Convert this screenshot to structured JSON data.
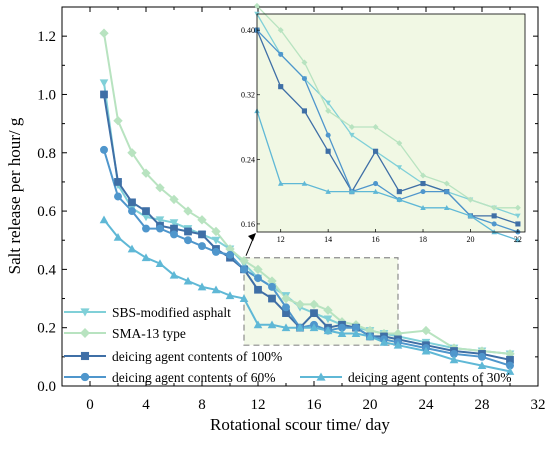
{
  "chart_data": {
    "type": "line",
    "xlabel": "Rotational scour time/ day",
    "ylabel": "Salt release per hour/ g",
    "xlim": [
      -2,
      32
    ],
    "ylim": [
      0,
      1.3
    ],
    "x_ticks": [
      "0",
      "4",
      "8",
      "12",
      "16",
      "20",
      "24",
      "28",
      "32"
    ],
    "y_ticks": [
      "0.0",
      "0.2",
      "0.4",
      "0.6",
      "0.8",
      "1.0",
      "1.2"
    ],
    "grid": false,
    "legend_placement": "bottom-left",
    "series": [
      {
        "name": "SBS-modified asphalt",
        "color": "#80d0d8",
        "marker": "triangle-down",
        "x": [
          1,
          2,
          3,
          4,
          5,
          6,
          7,
          8,
          9,
          10,
          11,
          12,
          13,
          14,
          15,
          16,
          17,
          18,
          19,
          20,
          21,
          22,
          24,
          26,
          28,
          30
        ],
        "y": [
          1.04,
          0.69,
          0.61,
          0.58,
          0.57,
          0.56,
          0.54,
          0.52,
          0.5,
          0.47,
          0.42,
          0.37,
          0.34,
          0.31,
          0.27,
          0.25,
          0.23,
          0.21,
          0.2,
          0.19,
          0.18,
          0.17,
          0.15,
          0.13,
          0.12,
          0.11
        ]
      },
      {
        "name": "SMA-13 type",
        "color": "#b8e3c0",
        "marker": "diamond",
        "x": [
          1,
          2,
          3,
          4,
          5,
          6,
          7,
          8,
          9,
          10,
          11,
          12,
          13,
          14,
          15,
          16,
          17,
          18,
          19,
          20,
          21,
          22,
          24,
          26,
          28,
          30
        ],
        "y": [
          1.21,
          0.91,
          0.8,
          0.73,
          0.68,
          0.64,
          0.6,
          0.57,
          0.53,
          0.47,
          0.43,
          0.4,
          0.36,
          0.3,
          0.28,
          0.28,
          0.26,
          0.22,
          0.21,
          0.19,
          0.18,
          0.18,
          0.19,
          0.13,
          0.12,
          0.11
        ]
      },
      {
        "name": "deicing agent contents of 100%",
        "color": "#3f6fa6",
        "marker": "square",
        "x": [
          1,
          2,
          3,
          4,
          5,
          6,
          7,
          8,
          9,
          10,
          11,
          12,
          13,
          14,
          15,
          16,
          17,
          18,
          19,
          20,
          21,
          22,
          24,
          26,
          28,
          30
        ],
        "y": [
          1.0,
          0.7,
          0.63,
          0.6,
          0.55,
          0.54,
          0.53,
          0.52,
          0.47,
          0.44,
          0.4,
          0.33,
          0.3,
          0.25,
          0.2,
          0.25,
          0.2,
          0.21,
          0.2,
          0.17,
          0.17,
          0.16,
          0.14,
          0.12,
          0.11,
          0.09
        ]
      },
      {
        "name": "deicing agent contents of 60%",
        "color": "#4f96cc",
        "marker": "circle",
        "x": [
          1,
          2,
          3,
          4,
          5,
          6,
          7,
          8,
          9,
          10,
          11,
          12,
          13,
          14,
          15,
          16,
          17,
          18,
          19,
          20,
          21,
          22,
          24,
          26,
          28,
          30
        ],
        "y": [
          0.81,
          0.65,
          0.6,
          0.54,
          0.54,
          0.52,
          0.5,
          0.48,
          0.46,
          0.45,
          0.4,
          0.37,
          0.34,
          0.27,
          0.2,
          0.21,
          0.19,
          0.2,
          0.2,
          0.17,
          0.16,
          0.15,
          0.13,
          0.11,
          0.1,
          0.07
        ]
      },
      {
        "name": "deicing agent contents of 30%",
        "color": "#5fb8d6",
        "marker": "triangle-up",
        "x": [
          1,
          2,
          3,
          4,
          5,
          6,
          7,
          8,
          9,
          10,
          11,
          12,
          13,
          14,
          15,
          16,
          17,
          18,
          19,
          20,
          21,
          22,
          24,
          26,
          28,
          30
        ],
        "y": [
          0.57,
          0.51,
          0.47,
          0.44,
          0.42,
          0.38,
          0.36,
          0.34,
          0.33,
          0.31,
          0.3,
          0.21,
          0.21,
          0.2,
          0.2,
          0.2,
          0.19,
          0.18,
          0.18,
          0.17,
          0.15,
          0.14,
          0.12,
          0.09,
          0.07,
          0.05
        ]
      }
    ],
    "inset": {
      "xlim": [
        11,
        22.3
      ],
      "ylim": [
        0.15,
        0.42
      ],
      "x_ticks": [
        "12",
        "14",
        "16",
        "18",
        "20",
        "22"
      ],
      "y_ticks": [
        "0.16",
        "0.24",
        "0.32",
        "0.40"
      ],
      "background": "#f1f8e4",
      "zoom_box_x": [
        11,
        22
      ],
      "zoom_box_y": [
        0.14,
        0.44
      ]
    }
  }
}
